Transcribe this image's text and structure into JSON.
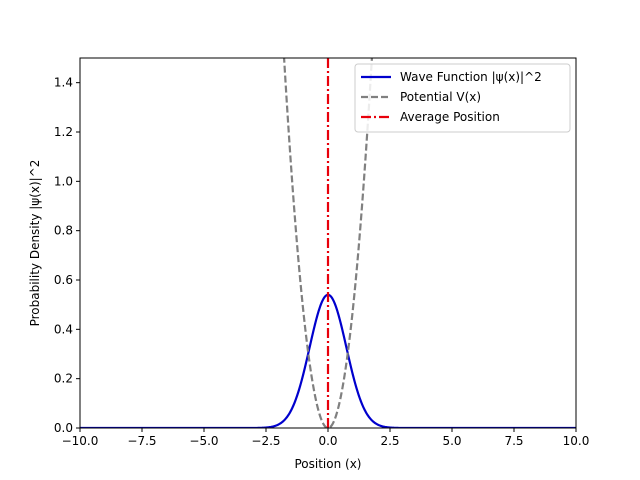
{
  "chart_data": {
    "type": "line",
    "xlabel": "Position (x)",
    "ylabel": "Probability Density |ψ(x)|^2",
    "xlim": [
      -10,
      10
    ],
    "ylim": [
      0,
      1.5
    ],
    "xticks": [
      -10,
      -7.5,
      -5,
      -2.5,
      0,
      2.5,
      5,
      7.5,
      10
    ],
    "xtick_labels": [
      "−10.0",
      "−7.5",
      "−5.0",
      "−2.5",
      "0.0",
      "2.5",
      "5.0",
      "7.5",
      "10.0"
    ],
    "yticks": [
      0,
      0.2,
      0.4,
      0.6,
      0.8,
      1.0,
      1.2,
      1.4
    ],
    "ytick_labels": [
      "0.0",
      "0.2",
      "0.4",
      "0.6",
      "0.8",
      "1.0",
      "1.2",
      "1.4"
    ],
    "grid": false,
    "legend_position": "top-right",
    "series": [
      {
        "name": "Wave Function |ψ(x)|^2",
        "color": "#0000cd",
        "style": "solid",
        "x": [
          -10,
          -3,
          -2.5,
          -2,
          -1.75,
          -1.5,
          -1.25,
          -1,
          -0.75,
          -0.5,
          -0.25,
          0,
          0.25,
          0.5,
          0.75,
          1,
          1.25,
          1.5,
          1.75,
          2,
          2.5,
          3,
          10
        ],
        "y": [
          0,
          0.0003,
          0.0011,
          0.0092,
          0.024,
          0.056,
          0.113,
          0.197,
          0.29,
          0.42,
          0.51,
          0.54,
          0.51,
          0.42,
          0.29,
          0.197,
          0.113,
          0.056,
          0.024,
          0.0092,
          0.0011,
          0.0003,
          0
        ]
      },
      {
        "name": "Potential V(x)",
        "color": "#808080",
        "style": "dashed",
        "x": [
          -1.8,
          -1.6,
          -1.4,
          -1.2,
          -1.0,
          -0.8,
          -0.6,
          -0.4,
          -0.2,
          0,
          0.2,
          0.4,
          0.6,
          0.8,
          1.0,
          1.2,
          1.4,
          1.6,
          1.8
        ],
        "y": [
          1.55,
          1.22,
          0.94,
          0.69,
          0.48,
          0.31,
          0.17,
          0.077,
          0.019,
          0,
          0.019,
          0.077,
          0.17,
          0.31,
          0.48,
          0.69,
          0.94,
          1.22,
          1.55
        ]
      },
      {
        "name": "Average Position",
        "color": "#e8000b",
        "style": "dashdot",
        "x": [
          0,
          0
        ],
        "y": [
          0,
          1.5
        ]
      }
    ]
  }
}
